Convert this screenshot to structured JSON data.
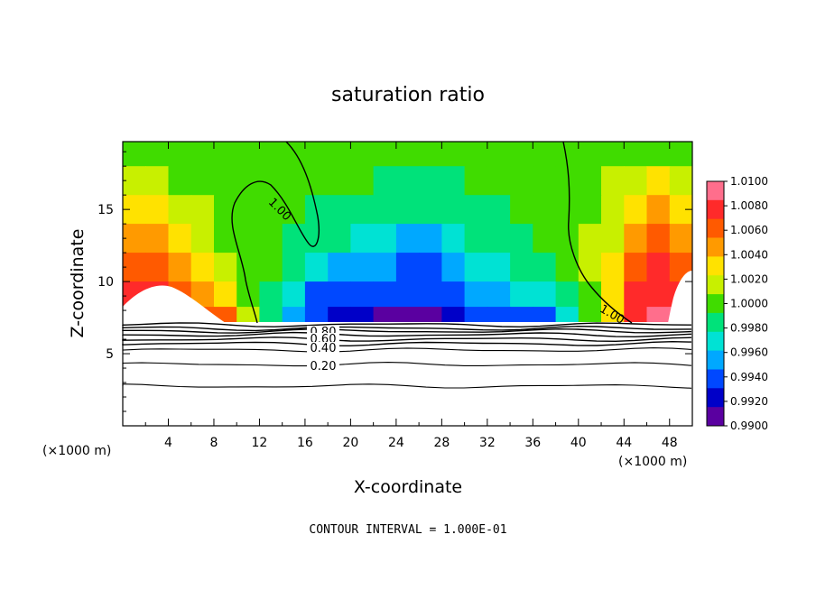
{
  "chart_data": {
    "type": "heatmap",
    "title": "saturation ratio",
    "xlabel": "X-coordinate",
    "ylabel": "Z-coordinate",
    "x_unit_left": "(×1000 m)",
    "x_unit_right": "(×1000 m)",
    "footnote": "CONTOUR INTERVAL = 1.000E-01",
    "xlim": [
      0,
      50
    ],
    "ylim": [
      0,
      19.7
    ],
    "x_ticks": [
      4,
      8,
      12,
      16,
      20,
      24,
      28,
      32,
      36,
      40,
      44,
      48
    ],
    "y_ticks": [
      5,
      10,
      15
    ],
    "colorbar": {
      "min": 0.99,
      "max": 1.01,
      "labels": [
        "1.0100",
        "1.0080",
        "1.0060",
        "1.0040",
        "1.0020",
        "1.0000",
        "0.9980",
        "0.9960",
        "0.9940",
        "0.9920",
        "0.9900"
      ],
      "colors": [
        "#ff6e8c",
        "#ff2a2a",
        "#ff5a00",
        "#ff9a00",
        "#ffe200",
        "#c8f000",
        "#40dc00",
        "#00e27a",
        "#00e2d4",
        "#00a8ff",
        "#0048ff",
        "#0000c8",
        "#5a00a0"
      ]
    },
    "contour_labels": [
      "1.00",
      "1.00",
      "0.80",
      "0.60",
      "0.40",
      "0.20"
    ],
    "contour_levels_below": [
      0.2,
      0.4,
      0.6,
      0.8
    ],
    "field_sample_rows_z": [
      19,
      17,
      15,
      13,
      11,
      9,
      7.5
    ],
    "field_sample_cols_x": [
      1,
      3,
      5,
      7,
      9,
      11,
      13,
      15,
      17,
      19,
      21,
      23,
      25,
      27,
      29,
      31,
      33,
      35,
      37,
      39,
      41,
      43,
      45,
      47,
      49
    ],
    "field_sample_values": [
      [
        1.0005,
        1.0005,
        1.0003,
        1.0002,
        1.0001,
        1.0,
        0.9999,
        0.9999,
        0.9998,
        0.9998,
        0.9997,
        0.9997,
        0.9996,
        0.9996,
        0.9996,
        0.9997,
        0.9997,
        0.9998,
        0.9999,
        1.0,
        1.0001,
        1.0002,
        1.0002,
        1.0002,
        1.0002
      ],
      [
        1.0015,
        1.0012,
        1.0008,
        1.0004,
        1.0002,
        1.0,
        0.9997,
        0.9996,
        0.9995,
        0.9993,
        0.9992,
        0.9991,
        0.999,
        0.999,
        0.9991,
        0.9993,
        0.9995,
        0.9996,
        0.9998,
        1.0,
        1.0005,
        1.0012,
        1.0022,
        1.003,
        1.002
      ],
      [
        1.003,
        1.0028,
        1.002,
        1.001,
        1.0004,
        1.0,
        0.9996,
        0.9994,
        0.999,
        0.9988,
        0.9985,
        0.998,
        0.9975,
        0.9978,
        0.9985,
        0.9988,
        0.999,
        0.9994,
        0.9996,
        1.0,
        1.0008,
        1.002,
        1.0038,
        1.005,
        1.004
      ],
      [
        1.0045,
        1.0042,
        1.0035,
        1.0018,
        1.0008,
        1.0002,
        0.9996,
        0.999,
        0.9982,
        0.9978,
        0.9972,
        0.9962,
        0.9955,
        0.9958,
        0.997,
        0.9975,
        0.998,
        0.9988,
        0.9993,
        0.9998,
        1.001,
        1.0025,
        1.0045,
        1.0065,
        1.0055
      ],
      [
        1.007,
        1.0065,
        1.005,
        1.003,
        1.0012,
        1.0003,
        0.9994,
        0.9984,
        0.9965,
        0.9952,
        0.9948,
        0.9944,
        0.9935,
        0.9932,
        0.995,
        0.996,
        0.9968,
        0.998,
        0.9985,
        0.9995,
        1.0012,
        1.003,
        1.006,
        1.008,
        1.0072
      ],
      [
        1.0085,
        1.008,
        1.007,
        1.0045,
        1.003,
        1.0008,
        0.999,
        0.996,
        0.9935,
        0.993,
        0.9932,
        0.993,
        0.9925,
        0.9925,
        0.9935,
        0.9945,
        0.995,
        0.996,
        0.9962,
        0.998,
        1.0008,
        1.004,
        1.0075,
        1.009,
        1.0085
      ],
      [
        1.01,
        1.01,
        1.009,
        1.007,
        1.006,
        1.002,
        0.998,
        0.995,
        0.9925,
        0.9915,
        0.991,
        0.9905,
        0.9905,
        0.9908,
        0.992,
        0.993,
        0.9935,
        0.9935,
        0.994,
        0.9965,
        0.9995,
        1.004,
        1.009,
        1.01,
        1.01
      ]
    ]
  }
}
